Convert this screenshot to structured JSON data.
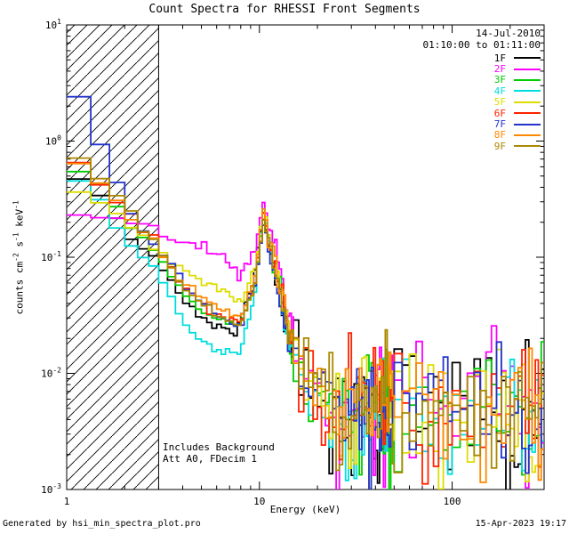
{
  "title": "Count Spectra for RHESSI Front Segments",
  "header": {
    "date": "14-Jul-2010",
    "time_range": "01:10:00 to 01:11:00"
  },
  "annotations": {
    "line1": "Includes Background",
    "line2": "Att A0, FDecim 1"
  },
  "footer": {
    "left": "Generated by hsi_min_spectra_plot.pro",
    "right": "15-Apr-2023 19:17"
  },
  "chart_data": {
    "type": "line",
    "title": "Count Spectra for RHESSI Front Segments",
    "xlabel": "Energy (keV)",
    "ylabel_parts": [
      {
        "t": "counts cm"
      },
      {
        "s": "-2"
      },
      {
        "t": " s"
      },
      {
        "s": "-1"
      },
      {
        "t": " keV"
      },
      {
        "s": "-1"
      }
    ],
    "xlim": [
      1,
      300
    ],
    "ylim": [
      0.001,
      10
    ],
    "xticks": [
      1,
      10,
      100
    ],
    "yticks_exp": [
      -3,
      -2,
      -1,
      0,
      1
    ],
    "axes_scale": "log-log",
    "grid": false,
    "legend_position": "top-right",
    "hatch_region": {
      "xmin": 1,
      "xmax": 3
    },
    "bins": {
      "segments": [
        [
          1,
          15,
          0.3333333333
        ],
        [
          15,
          50,
          1
        ],
        [
          50,
          100,
          5
        ],
        [
          100,
          300,
          10
        ]
      ]
    },
    "noise": {
      "sigma_breaks": [
        [
          11,
          0.02
        ],
        [
          15,
          0.06
        ],
        [
          25,
          0.15
        ],
        [
          100000,
          0.28
        ]
      ],
      "spike_min_e": 20,
      "spike_prob": 0.04,
      "dip_prob": 0.03
    },
    "series": [
      {
        "name": "1F",
        "color": "#000000",
        "seed": 11,
        "anchors": [
          [
            1.15,
            0.5
          ],
          [
            1.5,
            0.35
          ],
          [
            2,
            0.18
          ],
          [
            3,
            0.09
          ],
          [
            4,
            0.045
          ],
          [
            5,
            0.03
          ],
          [
            6,
            0.025
          ],
          [
            7.5,
            0.022
          ],
          [
            9,
            0.05
          ],
          [
            10.5,
            0.22
          ],
          [
            12,
            0.08
          ],
          [
            14,
            0.02
          ],
          [
            17,
            0.009
          ],
          [
            25,
            0.005
          ],
          [
            60,
            0.005
          ],
          [
            150,
            0.005
          ],
          [
            320,
            0.004
          ]
        ]
      },
      {
        "name": "2F",
        "color": "#ff00ff",
        "seed": 22,
        "anchors": [
          [
            1.15,
            0.23
          ],
          [
            1.6,
            0.21
          ],
          [
            2.2,
            0.2
          ],
          [
            3,
            0.17
          ],
          [
            4,
            0.14
          ],
          [
            5,
            0.12
          ],
          [
            6.5,
            0.1
          ],
          [
            8,
            0.07
          ],
          [
            9.5,
            0.12
          ],
          [
            10.5,
            0.3
          ],
          [
            12,
            0.12
          ],
          [
            14,
            0.035
          ],
          [
            17,
            0.012
          ],
          [
            25,
            0.006
          ],
          [
            60,
            0.005
          ],
          [
            150,
            0.006
          ],
          [
            320,
            0.005
          ]
        ]
      },
      {
        "name": "3F",
        "color": "#00cc00",
        "seed": 33,
        "anchors": [
          [
            1.15,
            0.55
          ],
          [
            1.5,
            0.4
          ],
          [
            2,
            0.22
          ],
          [
            3,
            0.1
          ],
          [
            4,
            0.05
          ],
          [
            5,
            0.035
          ],
          [
            6.5,
            0.028
          ],
          [
            8,
            0.025
          ],
          [
            9.5,
            0.06
          ],
          [
            10.5,
            0.24
          ],
          [
            12,
            0.09
          ],
          [
            14,
            0.022
          ],
          [
            17,
            0.009
          ],
          [
            25,
            0.005
          ],
          [
            60,
            0.005
          ],
          [
            150,
            0.005
          ],
          [
            320,
            0.004
          ]
        ]
      },
      {
        "name": "4F",
        "color": "#00dddd",
        "seed": 44,
        "anchors": [
          [
            1.15,
            0.45
          ],
          [
            1.5,
            0.3
          ],
          [
            2,
            0.15
          ],
          [
            3,
            0.07
          ],
          [
            4,
            0.03
          ],
          [
            5,
            0.018
          ],
          [
            6.5,
            0.015
          ],
          [
            8,
            0.016
          ],
          [
            9.5,
            0.05
          ],
          [
            10.5,
            0.26
          ],
          [
            12,
            0.07
          ],
          [
            14,
            0.018
          ],
          [
            17,
            0.008
          ],
          [
            25,
            0.004
          ],
          [
            60,
            0.005
          ],
          [
            150,
            0.005
          ],
          [
            320,
            0.004
          ]
        ]
      },
      {
        "name": "5F",
        "color": "#dddd00",
        "seed": 55,
        "anchors": [
          [
            1.15,
            0.35
          ],
          [
            1.6,
            0.28
          ],
          [
            2.2,
            0.18
          ],
          [
            3,
            0.11
          ],
          [
            4,
            0.075
          ],
          [
            5,
            0.06
          ],
          [
            6.5,
            0.05
          ],
          [
            8,
            0.04
          ],
          [
            9.5,
            0.08
          ],
          [
            10.5,
            0.25
          ],
          [
            12,
            0.1
          ],
          [
            14,
            0.03
          ],
          [
            17,
            0.01
          ],
          [
            25,
            0.005
          ],
          [
            60,
            0.005
          ],
          [
            150,
            0.005
          ],
          [
            320,
            0.004
          ]
        ]
      },
      {
        "name": "6F",
        "color": "#ff2200",
        "seed": 66,
        "anchors": [
          [
            1.15,
            0.6
          ],
          [
            1.5,
            0.42
          ],
          [
            2,
            0.24
          ],
          [
            3,
            0.12
          ],
          [
            4,
            0.055
          ],
          [
            5,
            0.04
          ],
          [
            6.5,
            0.03
          ],
          [
            8,
            0.027
          ],
          [
            9.5,
            0.06
          ],
          [
            10.5,
            0.23
          ],
          [
            12,
            0.09
          ],
          [
            14,
            0.025
          ],
          [
            17,
            0.01
          ],
          [
            25,
            0.005
          ],
          [
            60,
            0.006
          ],
          [
            150,
            0.005
          ],
          [
            320,
            0.005
          ]
        ]
      },
      {
        "name": "7F",
        "color": "#2233cc",
        "seed": 77,
        "anchors": [
          [
            1.15,
            2.3
          ],
          [
            1.3,
            1.6
          ],
          [
            1.5,
            0.95
          ],
          [
            1.7,
            0.55
          ],
          [
            2,
            0.3
          ],
          [
            2.4,
            0.17
          ],
          [
            3,
            0.12
          ],
          [
            4,
            0.06
          ],
          [
            5,
            0.04
          ],
          [
            6.5,
            0.03
          ],
          [
            8,
            0.025
          ],
          [
            9.5,
            0.06
          ],
          [
            10.5,
            0.2
          ],
          [
            12,
            0.08
          ],
          [
            14,
            0.022
          ],
          [
            17,
            0.009
          ],
          [
            25,
            0.005
          ],
          [
            60,
            0.005
          ],
          [
            150,
            0.005
          ],
          [
            320,
            0.004
          ]
        ]
      },
      {
        "name": "8F",
        "color": "#ff8800",
        "seed": 88,
        "anchors": [
          [
            1.15,
            0.65
          ],
          [
            1.5,
            0.45
          ],
          [
            2,
            0.25
          ],
          [
            3,
            0.12
          ],
          [
            4,
            0.06
          ],
          [
            5,
            0.045
          ],
          [
            6.5,
            0.035
          ],
          [
            8,
            0.03
          ],
          [
            9.5,
            0.07
          ],
          [
            10.5,
            0.24
          ],
          [
            12,
            0.1
          ],
          [
            14,
            0.028
          ],
          [
            17,
            0.011
          ],
          [
            25,
            0.006
          ],
          [
            60,
            0.006
          ],
          [
            150,
            0.006
          ],
          [
            320,
            0.005
          ]
        ]
      },
      {
        "name": "9F",
        "color": "#aa8800",
        "seed": 99,
        "anchors": [
          [
            1.15,
            0.7
          ],
          [
            1.5,
            0.48
          ],
          [
            2,
            0.26
          ],
          [
            3,
            0.12
          ],
          [
            4,
            0.055
          ],
          [
            5,
            0.04
          ],
          [
            6.5,
            0.03
          ],
          [
            8,
            0.026
          ],
          [
            9.5,
            0.06
          ],
          [
            10.5,
            0.21
          ],
          [
            12,
            0.085
          ],
          [
            14,
            0.024
          ],
          [
            17,
            0.01
          ],
          [
            25,
            0.005
          ],
          [
            60,
            0.005
          ],
          [
            150,
            0.005
          ],
          [
            320,
            0.004
          ]
        ]
      }
    ]
  }
}
